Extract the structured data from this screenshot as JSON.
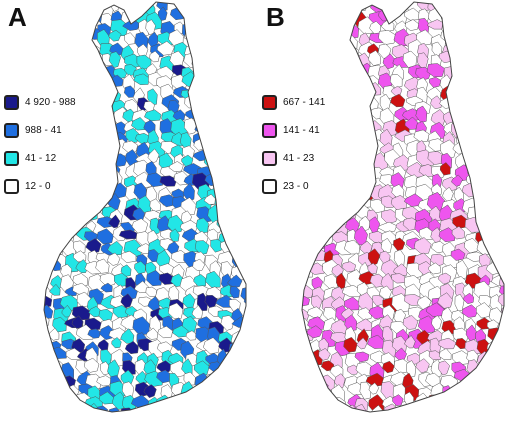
{
  "panels": [
    {
      "id": "A",
      "label": "A",
      "legend": [
        {
          "label": "4 920 - 988",
          "color": "#1a1a8c"
        },
        {
          "label": "988 - 41",
          "color": "#1f6fe0"
        },
        {
          "label": "41 - 12",
          "color": "#22e6e6"
        },
        {
          "label": "12 - 0",
          "color": "#ffffff"
        }
      ]
    },
    {
      "id": "B",
      "label": "B",
      "legend": [
        {
          "label": "667 - 141",
          "color": "#cc1111"
        },
        {
          "label": "141 - 41",
          "color": "#ee55ee"
        },
        {
          "label": "41 - 23",
          "color": "#f8c6f2"
        },
        {
          "label": "23 - 0",
          "color": "#ffffff"
        }
      ]
    }
  ]
}
